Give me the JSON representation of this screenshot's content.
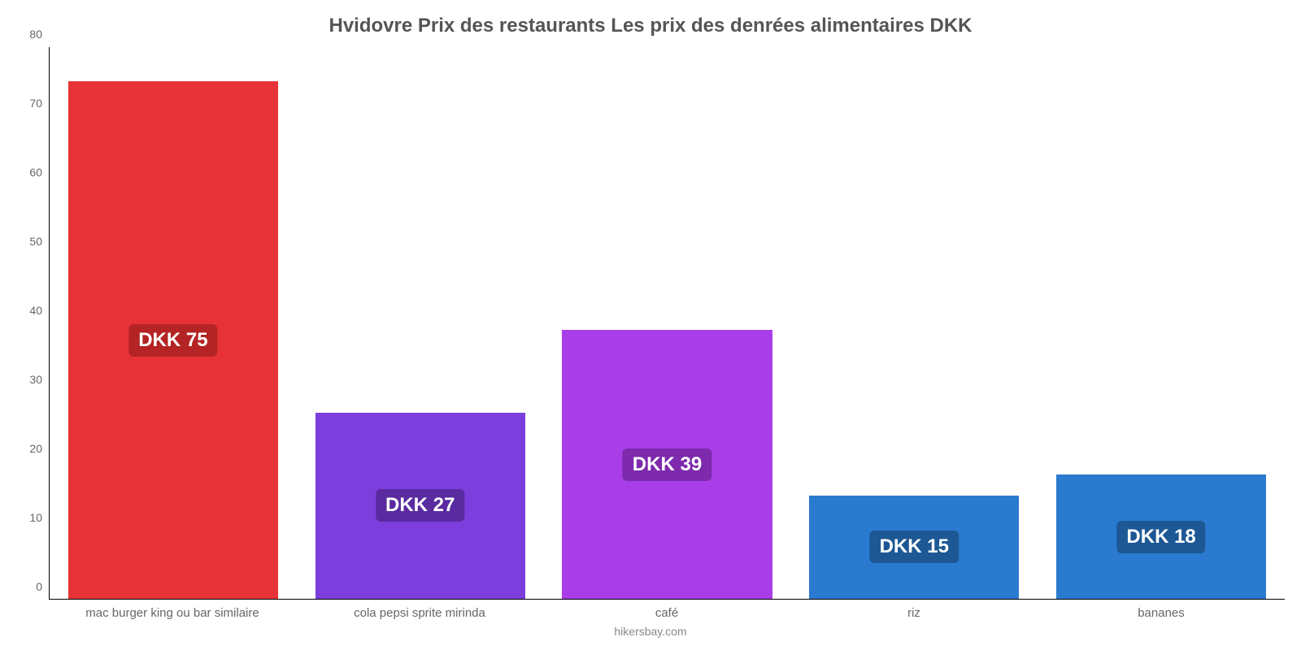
{
  "chart": {
    "type": "bar",
    "title": "Hvidovre Prix des restaurants Les prix des denrées alimentaires DKK",
    "title_fontsize": 24,
    "title_color": "#555555",
    "background_color": "#ffffff",
    "axis_color": "#000000",
    "tick_label_color": "#666666",
    "tick_label_fontsize": 14,
    "x_label_fontsize": 15,
    "ylim": [
      0,
      80
    ],
    "ytick_step": 10,
    "yticks": [
      0,
      10,
      20,
      30,
      40,
      50,
      60,
      70,
      80
    ],
    "bar_width_pct": 85,
    "value_label_fontsize": 24,
    "value_label_color": "#ffffff",
    "items": [
      {
        "category": "mac burger king ou bar similaire",
        "value": 75,
        "value_label": "DKK 75",
        "bar_color": "#e73338",
        "badge_color": "#b52424"
      },
      {
        "category": "cola pepsi sprite mirinda",
        "value": 27,
        "value_label": "DKK 27",
        "bar_color": "#7c3edc",
        "badge_color": "#5a2ba0"
      },
      {
        "category": "café",
        "value": 39,
        "value_label": "DKK 39",
        "bar_color": "#a93ee8",
        "badge_color": "#7d2aad"
      },
      {
        "category": "riz",
        "value": 15,
        "value_label": "DKK 15",
        "bar_color": "#2a7bcf",
        "badge_color": "#1d5894"
      },
      {
        "category": "bananes",
        "value": 18,
        "value_label": "DKK 18",
        "bar_color": "#2a7bcf",
        "badge_color": "#1d5894"
      }
    ],
    "footer": "hikersbay.com",
    "footer_color": "#888888",
    "footer_fontsize": 14
  }
}
